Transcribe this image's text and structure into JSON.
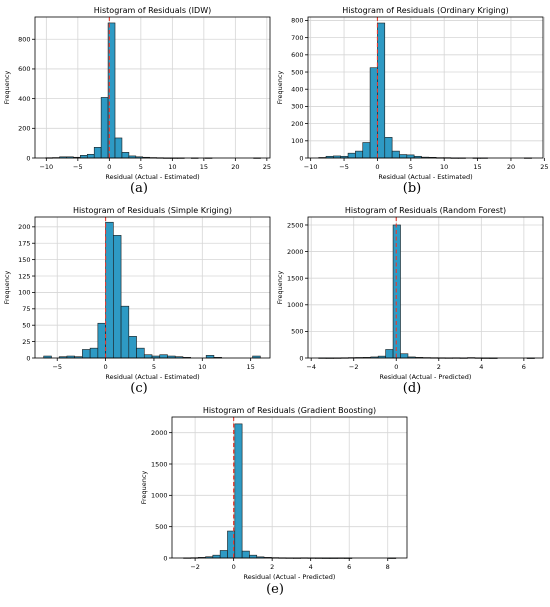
{
  "colors": {
    "bar": "#2e9ac4",
    "bar_edge": "#1a1a1a",
    "zero_line": "#e8392f",
    "grid": "#d6d6d6"
  },
  "chart_data": [
    {
      "type": "bar",
      "panel_label": "(a)",
      "title": "Histogram of Residuals (IDW)",
      "xlabel": "Residual (Actual - Estimated)",
      "ylabel": "Frequency",
      "xlim": [
        -11.8,
        25.5
      ],
      "ylim": [
        0,
        950
      ],
      "xticks": [
        -10,
        -5,
        0,
        5,
        10,
        15,
        20,
        25
      ],
      "yticks": [
        0,
        200,
        400,
        600,
        800
      ],
      "grid": true,
      "zero_line": 0,
      "bins": [
        {
          "x0": -10.1,
          "x1": -9.0,
          "value": 2
        },
        {
          "x0": -9.0,
          "x1": -7.9,
          "value": 3
        },
        {
          "x0": -7.9,
          "x1": -6.8,
          "value": 8
        },
        {
          "x0": -6.8,
          "x1": -5.7,
          "value": 8
        },
        {
          "x0": -5.7,
          "x1": -4.6,
          "value": 5
        },
        {
          "x0": -4.6,
          "x1": -3.5,
          "value": 18
        },
        {
          "x0": -3.5,
          "x1": -2.4,
          "value": 25
        },
        {
          "x0": -2.4,
          "x1": -1.3,
          "value": 72
        },
        {
          "x0": -1.3,
          "x1": -0.2,
          "value": 408
        },
        {
          "x0": -0.2,
          "x1": 0.9,
          "value": 910
        },
        {
          "x0": 0.9,
          "x1": 2.0,
          "value": 135
        },
        {
          "x0": 2.0,
          "x1": 3.1,
          "value": 38
        },
        {
          "x0": 3.1,
          "x1": 4.2,
          "value": 14
        },
        {
          "x0": 4.2,
          "x1": 5.3,
          "value": 8
        },
        {
          "x0": 5.3,
          "x1": 6.4,
          "value": 5
        },
        {
          "x0": 6.4,
          "x1": 7.5,
          "value": 3
        },
        {
          "x0": 7.5,
          "x1": 8.6,
          "value": 2
        },
        {
          "x0": 8.6,
          "x1": 9.7,
          "value": 1
        },
        {
          "x0": 9.7,
          "x1": 10.8,
          "value": 1
        },
        {
          "x0": 10.8,
          "x1": 11.9,
          "value": 1
        },
        {
          "x0": 11.9,
          "x1": 13.0,
          "value": 0
        },
        {
          "x0": 13.0,
          "x1": 14.1,
          "value": 1
        },
        {
          "x0": 14.1,
          "x1": 15.2,
          "value": 0
        },
        {
          "x0": 15.2,
          "x1": 16.3,
          "value": 1
        },
        {
          "x0": 16.3,
          "x1": 17.4,
          "value": 0
        },
        {
          "x0": 17.4,
          "x1": 18.5,
          "value": 0
        },
        {
          "x0": 18.5,
          "x1": 19.6,
          "value": 0
        },
        {
          "x0": 19.6,
          "x1": 20.7,
          "value": 0
        },
        {
          "x0": 20.7,
          "x1": 21.8,
          "value": 0
        },
        {
          "x0": 21.8,
          "x1": 22.9,
          "value": 0
        },
        {
          "x0": 22.9,
          "x1": 24.0,
          "value": 1
        }
      ]
    },
    {
      "type": "bar",
      "panel_label": "(b)",
      "title": "Histogram of Residuals (Ordinary Kriging)",
      "xlabel": "Residual (Actual - Estimated)",
      "ylabel": "Frequency",
      "xlim": [
        -10.4,
        24.8
      ],
      "ylim": [
        0,
        820
      ],
      "xticks": [
        -10,
        -5,
        0,
        5,
        10,
        15,
        20,
        25
      ],
      "yticks": [
        0,
        100,
        200,
        300,
        400,
        500,
        600,
        700,
        800
      ],
      "grid": true,
      "zero_line": 0,
      "bins": [
        {
          "x0": -8.8,
          "x1": -7.7,
          "value": 3
        },
        {
          "x0": -7.7,
          "x1": -6.6,
          "value": 10
        },
        {
          "x0": -6.6,
          "x1": -5.5,
          "value": 12
        },
        {
          "x0": -5.5,
          "x1": -4.4,
          "value": 10
        },
        {
          "x0": -4.4,
          "x1": -3.3,
          "value": 28
        },
        {
          "x0": -3.3,
          "x1": -2.2,
          "value": 40
        },
        {
          "x0": -2.2,
          "x1": -1.1,
          "value": 90
        },
        {
          "x0": -1.1,
          "x1": 0.0,
          "value": 525
        },
        {
          "x0": 0.0,
          "x1": 1.1,
          "value": 785
        },
        {
          "x0": 1.1,
          "x1": 2.2,
          "value": 120
        },
        {
          "x0": 2.2,
          "x1": 3.3,
          "value": 40
        },
        {
          "x0": 3.3,
          "x1": 4.4,
          "value": 20
        },
        {
          "x0": 4.4,
          "x1": 5.5,
          "value": 18
        },
        {
          "x0": 5.5,
          "x1": 6.6,
          "value": 10
        },
        {
          "x0": 6.6,
          "x1": 7.7,
          "value": 5
        },
        {
          "x0": 7.7,
          "x1": 8.8,
          "value": 4
        },
        {
          "x0": 8.8,
          "x1": 9.9,
          "value": 2
        },
        {
          "x0": 9.9,
          "x1": 11.0,
          "value": 2
        },
        {
          "x0": 11.0,
          "x1": 12.1,
          "value": 1
        },
        {
          "x0": 12.1,
          "x1": 13.2,
          "value": 1
        },
        {
          "x0": 13.2,
          "x1": 14.3,
          "value": 0
        },
        {
          "x0": 14.3,
          "x1": 15.4,
          "value": 1
        },
        {
          "x0": 15.4,
          "x1": 16.5,
          "value": 1
        },
        {
          "x0": 16.5,
          "x1": 17.6,
          "value": 0
        },
        {
          "x0": 17.6,
          "x1": 18.7,
          "value": 0
        },
        {
          "x0": 18.7,
          "x1": 19.8,
          "value": 0
        },
        {
          "x0": 19.8,
          "x1": 20.9,
          "value": 0
        },
        {
          "x0": 20.9,
          "x1": 22.0,
          "value": 0
        },
        {
          "x0": 22.0,
          "x1": 23.1,
          "value": 1
        }
      ]
    },
    {
      "type": "bar",
      "panel_label": "(c)",
      "title": "Histogram of Residuals (Simple Kriging)",
      "xlabel": "Residual (Actual - Estimated)",
      "ylabel": "Frequency",
      "xlim": [
        -7.3,
        17.0
      ],
      "ylim": [
        0,
        215
      ],
      "xticks": [
        -5,
        0,
        5,
        10,
        15
      ],
      "yticks": [
        0,
        25,
        50,
        75,
        100,
        125,
        150,
        175,
        200
      ],
      "grid": true,
      "zero_line": 0,
      "bins": [
        {
          "x0": -6.4,
          "x1": -5.6,
          "value": 3
        },
        {
          "x0": -5.6,
          "x1": -4.8,
          "value": 0
        },
        {
          "x0": -4.8,
          "x1": -4.0,
          "value": 2
        },
        {
          "x0": -4.0,
          "x1": -3.2,
          "value": 3
        },
        {
          "x0": -3.2,
          "x1": -2.4,
          "value": 2
        },
        {
          "x0": -2.4,
          "x1": -1.6,
          "value": 13
        },
        {
          "x0": -1.6,
          "x1": -0.8,
          "value": 15
        },
        {
          "x0": -0.8,
          "x1": 0.0,
          "value": 53
        },
        {
          "x0": 0.0,
          "x1": 0.8,
          "value": 207
        },
        {
          "x0": 0.8,
          "x1": 1.6,
          "value": 187
        },
        {
          "x0": 1.6,
          "x1": 2.4,
          "value": 79
        },
        {
          "x0": 2.4,
          "x1": 3.2,
          "value": 33
        },
        {
          "x0": 3.2,
          "x1": 4.0,
          "value": 15
        },
        {
          "x0": 4.0,
          "x1": 4.8,
          "value": 5
        },
        {
          "x0": 4.8,
          "x1": 5.6,
          "value": 3
        },
        {
          "x0": 5.6,
          "x1": 6.4,
          "value": 5
        },
        {
          "x0": 6.4,
          "x1": 7.2,
          "value": 3
        },
        {
          "x0": 7.2,
          "x1": 8.0,
          "value": 2
        },
        {
          "x0": 8.0,
          "x1": 8.8,
          "value": 1
        },
        {
          "x0": 8.8,
          "x1": 9.6,
          "value": 0
        },
        {
          "x0": 9.6,
          "x1": 10.4,
          "value": 0
        },
        {
          "x0": 10.4,
          "x1": 11.2,
          "value": 4
        },
        {
          "x0": 11.2,
          "x1": 12.0,
          "value": 1
        },
        {
          "x0": 12.0,
          "x1": 12.8,
          "value": 0
        },
        {
          "x0": 12.8,
          "x1": 13.6,
          "value": 0
        },
        {
          "x0": 13.6,
          "x1": 14.4,
          "value": 0
        },
        {
          "x0": 14.4,
          "x1": 15.2,
          "value": 0
        },
        {
          "x0": 15.2,
          "x1": 16.0,
          "value": 3
        }
      ]
    },
    {
      "type": "bar",
      "panel_label": "(d)",
      "title": "Histogram of Residuals (Random Forest)",
      "xlabel": "Residual (Actual - Predicted)",
      "ylabel": "Frequency",
      "xlim": [
        -4.15,
        6.9
      ],
      "ylim": [
        0,
        2650
      ],
      "xticks": [
        -4,
        -2,
        0,
        2,
        4,
        6
      ],
      "yticks": [
        0,
        500,
        1000,
        1500,
        2000,
        2500
      ],
      "grid": true,
      "zero_line": 0,
      "bins": [
        {
          "x0": -3.65,
          "x1": -3.3,
          "value": 3
        },
        {
          "x0": -3.3,
          "x1": -2.95,
          "value": 2
        },
        {
          "x0": -2.95,
          "x1": -2.6,
          "value": 3
        },
        {
          "x0": -2.6,
          "x1": -2.25,
          "value": 5
        },
        {
          "x0": -2.25,
          "x1": -1.9,
          "value": 8
        },
        {
          "x0": -1.9,
          "x1": -1.55,
          "value": 10
        },
        {
          "x0": -1.55,
          "x1": -1.2,
          "value": 12
        },
        {
          "x0": -1.2,
          "x1": -0.85,
          "value": 20
        },
        {
          "x0": -0.85,
          "x1": -0.5,
          "value": 35
        },
        {
          "x0": -0.5,
          "x1": -0.15,
          "value": 160
        },
        {
          "x0": -0.15,
          "x1": 0.2,
          "value": 2500
        },
        {
          "x0": 0.2,
          "x1": 0.55,
          "value": 80
        },
        {
          "x0": 0.55,
          "x1": 0.9,
          "value": 20
        },
        {
          "x0": 0.9,
          "x1": 1.25,
          "value": 12
        },
        {
          "x0": 1.25,
          "x1": 1.6,
          "value": 8
        },
        {
          "x0": 1.6,
          "x1": 1.95,
          "value": 6
        },
        {
          "x0": 1.95,
          "x1": 2.3,
          "value": 5
        },
        {
          "x0": 2.3,
          "x1": 2.65,
          "value": 4
        },
        {
          "x0": 2.65,
          "x1": 3.0,
          "value": 5
        },
        {
          "x0": 3.0,
          "x1": 3.35,
          "value": 3
        },
        {
          "x0": 3.35,
          "x1": 3.7,
          "value": 8
        },
        {
          "x0": 3.7,
          "x1": 4.05,
          "value": 4
        },
        {
          "x0": 4.05,
          "x1": 4.4,
          "value": 2
        },
        {
          "x0": 4.4,
          "x1": 4.75,
          "value": 1
        },
        {
          "x0": 4.75,
          "x1": 5.1,
          "value": 0
        },
        {
          "x0": 5.1,
          "x1": 5.45,
          "value": 0
        },
        {
          "x0": 5.45,
          "x1": 5.8,
          "value": 0
        },
        {
          "x0": 5.8,
          "x1": 6.15,
          "value": 0
        },
        {
          "x0": 6.15,
          "x1": 6.5,
          "value": 1
        }
      ]
    },
    {
      "type": "bar",
      "panel_label": "(e)",
      "title": "Histogram of Residuals (Gradient Boosting)",
      "xlabel": "Residual (Actual - Predicted)",
      "ylabel": "Frequency",
      "xlim": [
        -3.2,
        9.0
      ],
      "ylim": [
        0,
        2250
      ],
      "xticks": [
        -2,
        0,
        2,
        4,
        6,
        8
      ],
      "yticks": [
        0,
        500,
        1000,
        1500,
        2000
      ],
      "grid": true,
      "zero_line": 0,
      "bins": [
        {
          "x0": -2.6,
          "x1": -2.22,
          "value": 3
        },
        {
          "x0": -2.22,
          "x1": -1.84,
          "value": 5
        },
        {
          "x0": -1.84,
          "x1": -1.46,
          "value": 10
        },
        {
          "x0": -1.46,
          "x1": -1.08,
          "value": 20
        },
        {
          "x0": -1.08,
          "x1": -0.7,
          "value": 45
        },
        {
          "x0": -0.7,
          "x1": -0.32,
          "value": 120
        },
        {
          "x0": -0.32,
          "x1": 0.06,
          "value": 430
        },
        {
          "x0": 0.06,
          "x1": 0.44,
          "value": 2140
        },
        {
          "x0": 0.44,
          "x1": 0.82,
          "value": 110
        },
        {
          "x0": 0.82,
          "x1": 1.2,
          "value": 45
        },
        {
          "x0": 1.2,
          "x1": 1.58,
          "value": 18
        },
        {
          "x0": 1.58,
          "x1": 1.96,
          "value": 10
        },
        {
          "x0": 1.96,
          "x1": 2.34,
          "value": 6
        },
        {
          "x0": 2.34,
          "x1": 2.72,
          "value": 4
        },
        {
          "x0": 2.72,
          "x1": 3.1,
          "value": 3
        },
        {
          "x0": 3.1,
          "x1": 3.48,
          "value": 2
        },
        {
          "x0": 3.48,
          "x1": 3.86,
          "value": 4
        },
        {
          "x0": 3.86,
          "x1": 4.24,
          "value": 3
        },
        {
          "x0": 4.24,
          "x1": 4.62,
          "value": 2
        },
        {
          "x0": 4.62,
          "x1": 5.0,
          "value": 1
        },
        {
          "x0": 5.0,
          "x1": 5.38,
          "value": 1
        },
        {
          "x0": 5.38,
          "x1": 5.76,
          "value": 2
        },
        {
          "x0": 5.76,
          "x1": 6.14,
          "value": 1
        },
        {
          "x0": 6.14,
          "x1": 6.52,
          "value": 0
        },
        {
          "x0": 6.52,
          "x1": 6.9,
          "value": 0
        },
        {
          "x0": 6.9,
          "x1": 7.28,
          "value": 0
        },
        {
          "x0": 7.28,
          "x1": 7.66,
          "value": 0
        },
        {
          "x0": 7.66,
          "x1": 8.04,
          "value": 0
        },
        {
          "x0": 8.04,
          "x1": 8.42,
          "value": 1
        }
      ]
    }
  ]
}
